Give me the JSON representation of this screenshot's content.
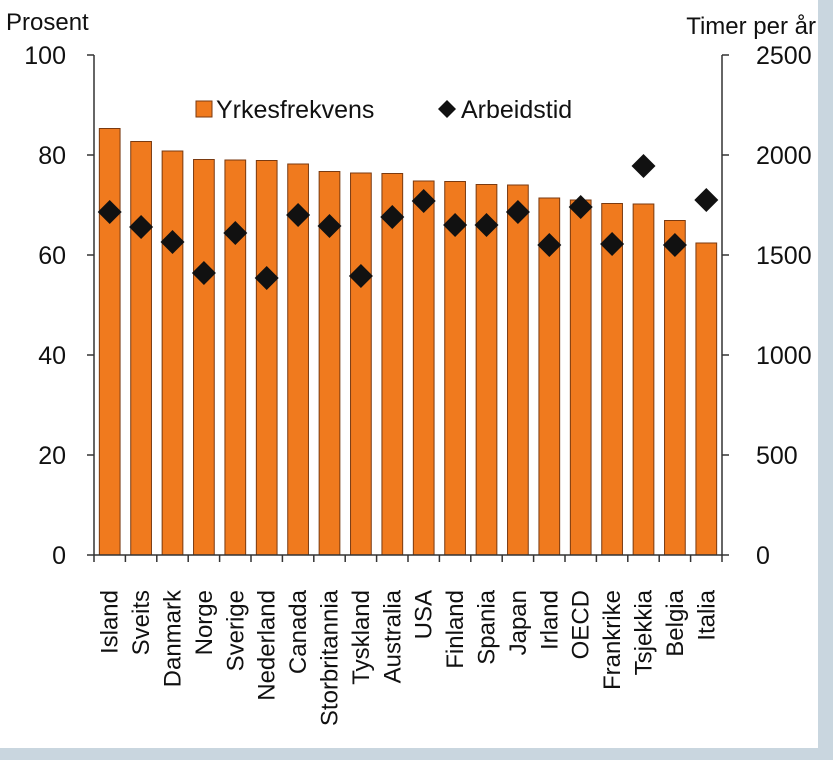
{
  "chart_data": {
    "type": "bar",
    "left_axis_label": "Prosent",
    "right_axis_label": "Timer per år",
    "categories": [
      "Island",
      "Sveits",
      "Danmark",
      "Norge",
      "Sverige",
      "Nederland",
      "Canada",
      "Storbritannia",
      "Tyskland",
      "Australia",
      "USA",
      "Finland",
      "Spania",
      "Japan",
      "Irland",
      "OECD",
      "Frankrike",
      "Tsjekkia",
      "Belgia",
      "Italia"
    ],
    "series": [
      {
        "name": "Yrkesfrekvens",
        "axis": "left",
        "type": "bar",
        "values": [
          85.3,
          82.7,
          80.8,
          79.1,
          79.0,
          78.9,
          78.2,
          76.7,
          76.4,
          76.3,
          74.8,
          74.7,
          74.1,
          74.0,
          71.4,
          71.0,
          70.3,
          70.2,
          66.9,
          62.4
        ]
      },
      {
        "name": "Arbeidstid",
        "axis": "right",
        "type": "scatter",
        "values": [
          1715,
          1640,
          1565,
          1410,
          1610,
          1385,
          1700,
          1645,
          1395,
          1690,
          1770,
          1650,
          1650,
          1715,
          1550,
          1740,
          1555,
          1945,
          1550,
          1775
        ]
      }
    ],
    "ylim_left": [
      0,
      100
    ],
    "ylim_right": [
      0,
      2500
    ],
    "yticks_left": [
      "0",
      "20",
      "40",
      "60",
      "80",
      "100"
    ],
    "yticks_right": [
      "0",
      "500",
      "1000",
      "1500",
      "2000",
      "2500"
    ],
    "legend_position": "top-inside",
    "colors": {
      "bar": "#f07a1e",
      "bar_edge": "#7a3a10",
      "marker": "#111111"
    }
  }
}
